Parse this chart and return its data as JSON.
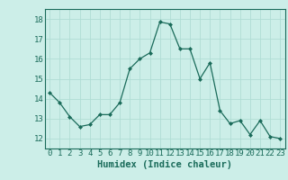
{
  "x": [
    0,
    1,
    2,
    3,
    4,
    5,
    6,
    7,
    8,
    9,
    10,
    11,
    12,
    13,
    14,
    15,
    16,
    17,
    18,
    19,
    20,
    21,
    22,
    23
  ],
  "y": [
    14.3,
    13.8,
    13.1,
    12.6,
    12.7,
    13.2,
    13.2,
    13.8,
    15.5,
    16.0,
    16.3,
    17.85,
    17.75,
    16.5,
    16.5,
    15.0,
    15.8,
    13.4,
    12.75,
    12.9,
    12.2,
    12.9,
    12.1,
    12.0
  ],
  "line_color": "#1a6b5a",
  "marker": "D",
  "marker_size": 2.0,
  "bg_color": "#cceee8",
  "grid_color": "#b0ddd4",
  "xlabel": "Humidex (Indice chaleur)",
  "ylim": [
    11.5,
    18.5
  ],
  "xlim": [
    -0.5,
    23.5
  ],
  "yticks": [
    12,
    13,
    14,
    15,
    16,
    17,
    18
  ],
  "xticks": [
    0,
    1,
    2,
    3,
    4,
    5,
    6,
    7,
    8,
    9,
    10,
    11,
    12,
    13,
    14,
    15,
    16,
    17,
    18,
    19,
    20,
    21,
    22,
    23
  ],
  "tick_color": "#1a6b5a",
  "xlabel_fontsize": 7.5,
  "tick_fontsize": 6.5,
  "linewidth": 0.9
}
